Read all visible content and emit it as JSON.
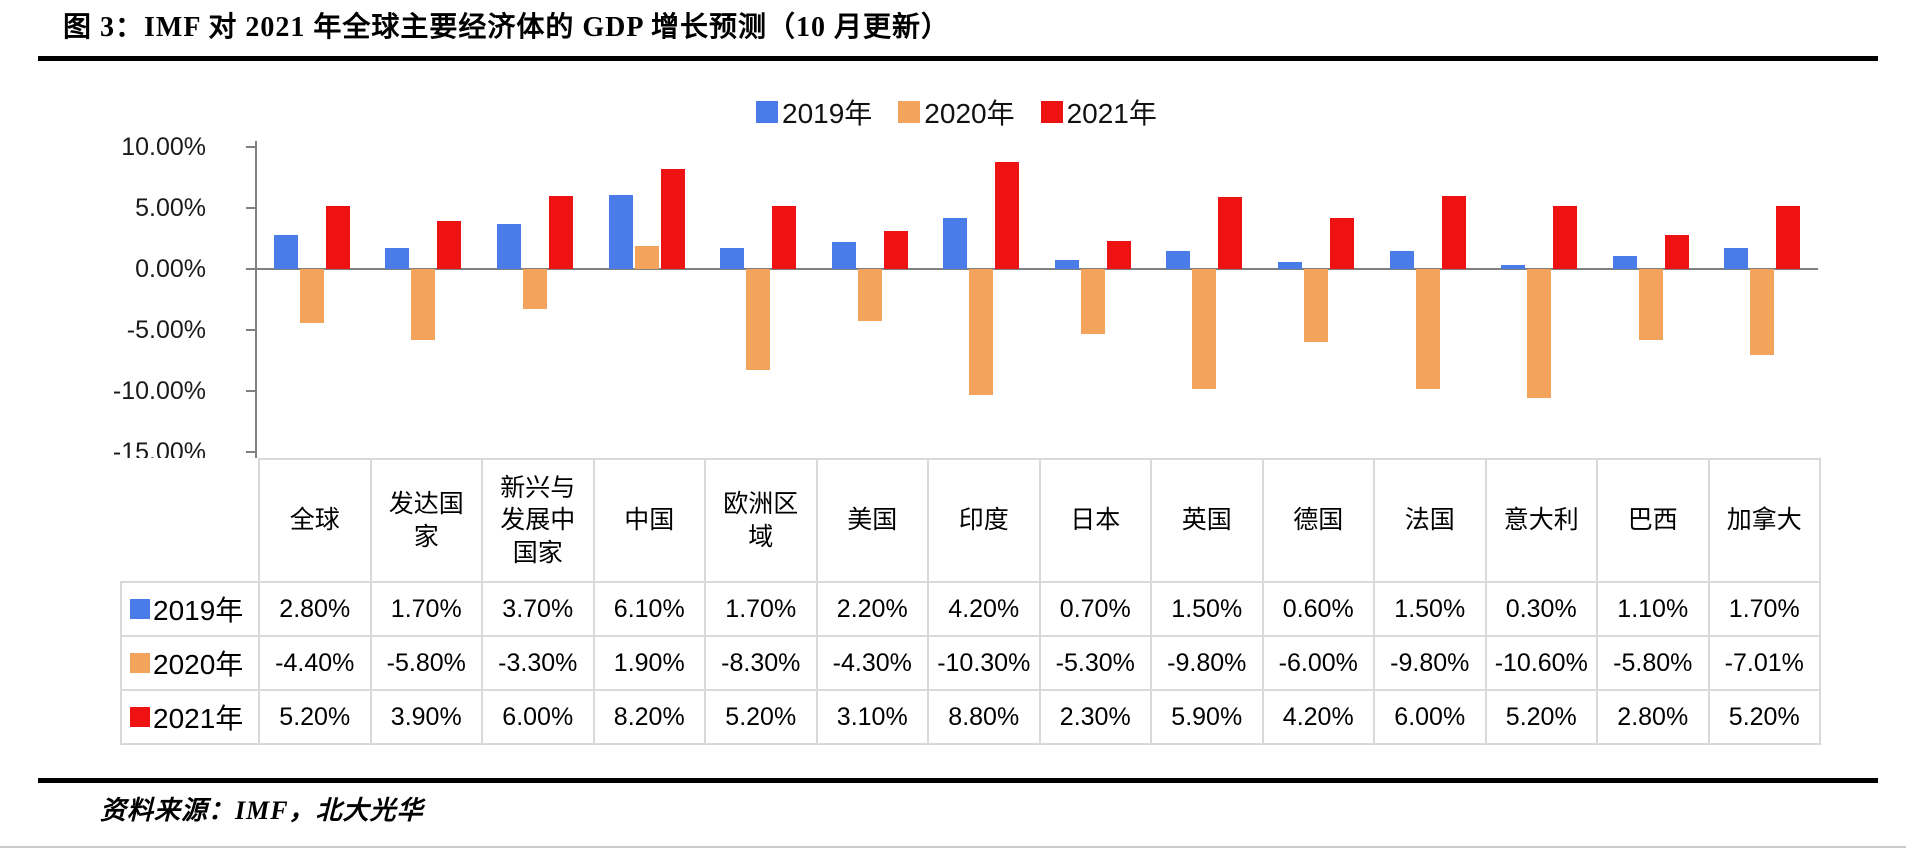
{
  "title": "图 3：IMF 对 2021 年全球主要经济体的 GDP 增长预测（10 月更新）",
  "source": "资料来源：IMF，北大光华",
  "colors": {
    "series_2019": "#4a7ce9",
    "series_2020": "#f4a35c",
    "series_2021": "#ee1212",
    "axis": "#808080",
    "table_border": "#d9d9d9",
    "rule": "#000000"
  },
  "y_axis": {
    "labels": [
      "10.00%",
      "5.00%",
      "0.00%",
      "-5.00%",
      "-10.00%",
      "-15.00%"
    ],
    "values": [
      10,
      5,
      0,
      -5,
      -10,
      -15
    ]
  },
  "chart_data": {
    "type": "bar",
    "title": "IMF 对 2021 年全球主要经济体的 GDP 增长预测（10 月更新）",
    "categories": [
      "全球",
      "发达国家",
      "新兴与发展中国家",
      "中国",
      "欧洲区域",
      "美国",
      "印度",
      "日本",
      "英国",
      "德国",
      "法国",
      "意大利",
      "巴西",
      "加拿大"
    ],
    "series": [
      {
        "name": "2019年",
        "color": "#4a7ce9",
        "values": [
          2.8,
          1.7,
          3.7,
          6.1,
          1.7,
          2.2,
          4.2,
          0.7,
          1.5,
          0.6,
          1.5,
          0.3,
          1.1,
          1.7
        ]
      },
      {
        "name": "2020年",
        "color": "#f4a35c",
        "values": [
          -4.4,
          -5.8,
          -3.3,
          1.9,
          -8.3,
          -4.3,
          -10.3,
          -5.3,
          -9.8,
          -6.0,
          -9.8,
          -10.6,
          -5.8,
          -7.01
        ]
      },
      {
        "name": "2021年",
        "color": "#ee1212",
        "values": [
          5.2,
          3.9,
          6.0,
          8.2,
          5.2,
          3.1,
          8.8,
          2.3,
          5.9,
          4.2,
          6.0,
          5.2,
          2.8,
          5.2
        ]
      }
    ],
    "xlabel": "",
    "ylabel": "",
    "ylim": [
      -15,
      10
    ],
    "y_tick_step": 5,
    "grid": false,
    "legend_position": "top-center"
  },
  "table": {
    "header": [
      "全球",
      "发达国家",
      "新兴与发展中国家",
      "中国",
      "欧洲区域",
      "美国",
      "印度",
      "日本",
      "英国",
      "德国",
      "法国",
      "意大利",
      "巴西",
      "加拿大"
    ],
    "rows": [
      {
        "label": "2019年",
        "color": "#4a7ce9",
        "values": [
          "2.80%",
          "1.70%",
          "3.70%",
          "6.10%",
          "1.70%",
          "2.20%",
          "4.20%",
          "0.70%",
          "1.50%",
          "0.60%",
          "1.50%",
          "0.30%",
          "1.10%",
          "1.70%"
        ]
      },
      {
        "label": "2020年",
        "color": "#f4a35c",
        "values": [
          "-4.40%",
          "-5.80%",
          "-3.30%",
          "1.90%",
          "-8.30%",
          "-4.30%",
          "-10.30%",
          "-5.30%",
          "-9.80%",
          "-6.00%",
          "-9.80%",
          "-10.60%",
          "-5.80%",
          "-7.01%"
        ]
      },
      {
        "label": "2021年",
        "color": "#ee1212",
        "values": [
          "5.20%",
          "3.90%",
          "6.00%",
          "8.20%",
          "5.20%",
          "3.10%",
          "8.80%",
          "2.30%",
          "5.90%",
          "4.20%",
          "6.00%",
          "5.20%",
          "2.80%",
          "5.20%"
        ]
      }
    ]
  }
}
